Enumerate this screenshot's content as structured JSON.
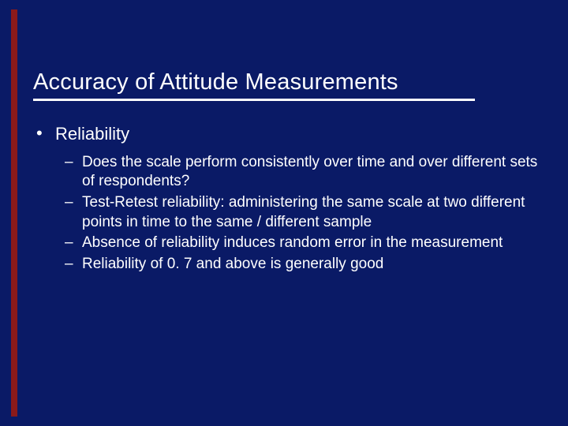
{
  "slide": {
    "background_color": "#0a1a66",
    "text_color": "#ffffff",
    "accent_color": "#8b1a1a",
    "rule_color": "#ffffff",
    "title": "Accuracy of Attitude Measurements",
    "title_fontsize": 29,
    "body_fontsize_level1": 22,
    "body_fontsize_level2": 19,
    "font_family": "Verdana",
    "bullets": [
      {
        "text": "Reliability",
        "sub": [
          "Does the scale perform consistently over time and over different sets of respondents?",
          "Test-Retest reliability: administering the same scale at two different points in time to the same / different sample",
          "Absence of reliability induces random error in the measurement",
          "Reliability of 0. 7 and above is generally good"
        ]
      }
    ]
  }
}
